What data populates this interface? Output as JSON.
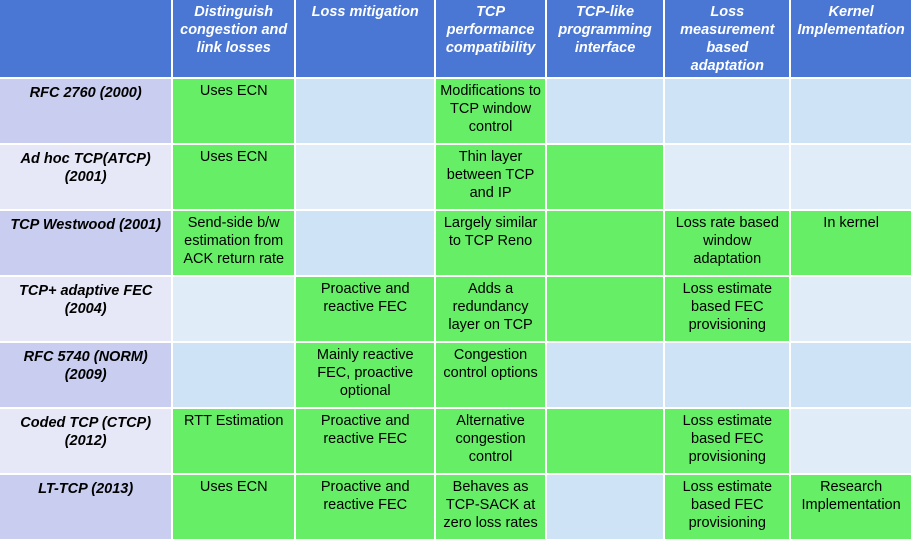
{
  "table": {
    "headers": [
      "",
      "Distinguish congestion and link losses",
      "Loss mitigation",
      "TCP performance compatibility",
      "TCP-like programming interface",
      "Loss measurement based adaptation",
      "Kernel Implementation"
    ],
    "rows": [
      {
        "label": "RFC 2760 (2000)",
        "cells": [
          {
            "text": "Uses ECN",
            "highlight": true
          },
          {
            "text": "",
            "highlight": false
          },
          {
            "text": "Modifications to TCP window control",
            "highlight": true
          },
          {
            "text": "",
            "highlight": false
          },
          {
            "text": "",
            "highlight": false
          },
          {
            "text": "",
            "highlight": false
          }
        ]
      },
      {
        "label": "Ad hoc TCP(ATCP) (2001)",
        "cells": [
          {
            "text": "Uses ECN",
            "highlight": true
          },
          {
            "text": "",
            "highlight": false
          },
          {
            "text": "Thin layer between TCP and IP",
            "highlight": true
          },
          {
            "text": "",
            "highlight": true
          },
          {
            "text": "",
            "highlight": false
          },
          {
            "text": "",
            "highlight": false
          }
        ]
      },
      {
        "label": "TCP Westwood (2001)",
        "cells": [
          {
            "text": "Send-side b/w estimation from ACK return rate",
            "highlight": true
          },
          {
            "text": "",
            "highlight": false
          },
          {
            "text": "Largely similar to TCP Reno",
            "highlight": true
          },
          {
            "text": "",
            "highlight": true
          },
          {
            "text": "Loss rate based window adaptation",
            "highlight": true
          },
          {
            "text": "In kernel",
            "highlight": true
          }
        ]
      },
      {
        "label": "TCP+ adaptive FEC (2004)",
        "cells": [
          {
            "text": "",
            "highlight": false
          },
          {
            "text": "Proactive and reactive FEC",
            "highlight": true
          },
          {
            "text": "Adds a redundancy layer on TCP",
            "highlight": true
          },
          {
            "text": "",
            "highlight": true
          },
          {
            "text": "Loss estimate based FEC provisioning",
            "highlight": true
          },
          {
            "text": "",
            "highlight": false
          }
        ]
      },
      {
        "label": "RFC 5740 (NORM) (2009)",
        "cells": [
          {
            "text": "",
            "highlight": false
          },
          {
            "text": "Mainly reactive FEC, proactive optional",
            "highlight": true
          },
          {
            "text": "Congestion control options",
            "highlight": true
          },
          {
            "text": "",
            "highlight": false
          },
          {
            "text": "",
            "highlight": false
          },
          {
            "text": "",
            "highlight": false
          }
        ]
      },
      {
        "label": "Coded TCP (CTCP) (2012)",
        "cells": [
          {
            "text": "RTT Estimation",
            "highlight": true
          },
          {
            "text": "Proactive and reactive FEC",
            "highlight": true
          },
          {
            "text": "Alternative congestion control",
            "highlight": true
          },
          {
            "text": "",
            "highlight": true
          },
          {
            "text": "Loss estimate based FEC provisioning",
            "highlight": true
          },
          {
            "text": "",
            "highlight": false
          }
        ]
      },
      {
        "label": "LT-TCP (2013)",
        "cells": [
          {
            "text": "Uses ECN",
            "highlight": true
          },
          {
            "text": "Proactive and reactive FEC",
            "highlight": true
          },
          {
            "text": "Behaves as TCP-SACK at zero loss rates",
            "highlight": true
          },
          {
            "text": "",
            "highlight": false
          },
          {
            "text": "Loss estimate based FEC provisioning",
            "highlight": true
          },
          {
            "text": "Research Implementation",
            "highlight": true
          }
        ]
      }
    ]
  },
  "colors": {
    "header": "#4a76d4",
    "highlight": "#66ee66",
    "row_label": "#c9cdef",
    "row_label_alt": "#e6e8f7",
    "cell": "#cfe3f7",
    "cell_alt": "#e1ecf9"
  }
}
